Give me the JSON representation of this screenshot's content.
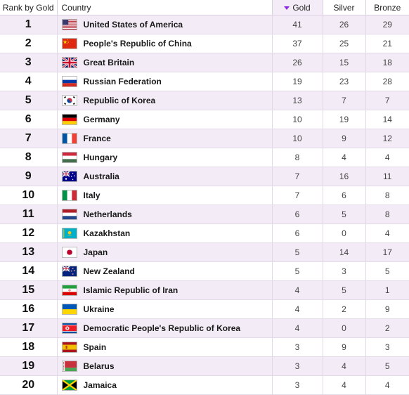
{
  "header": {
    "rank": "Rank by Gold",
    "country": "Country",
    "gold": "Gold",
    "silver": "Silver",
    "bronze": "Bronze",
    "sort_icon": "sort-descending-icon",
    "sort_color": "#8a2be2"
  },
  "rows": [
    {
      "rank": "1",
      "country": "United States of America",
      "flag": "usa",
      "gold": "41",
      "silver": "26",
      "bronze": "29"
    },
    {
      "rank": "2",
      "country": "People's Republic of China",
      "flag": "china",
      "gold": "37",
      "silver": "25",
      "bronze": "21"
    },
    {
      "rank": "3",
      "country": "Great Britain",
      "flag": "uk",
      "gold": "26",
      "silver": "15",
      "bronze": "18"
    },
    {
      "rank": "4",
      "country": "Russian Federation",
      "flag": "russia",
      "gold": "19",
      "silver": "23",
      "bronze": "28"
    },
    {
      "rank": "5",
      "country": "Republic of Korea",
      "flag": "korea",
      "gold": "13",
      "silver": "7",
      "bronze": "7"
    },
    {
      "rank": "6",
      "country": "Germany",
      "flag": "germany",
      "gold": "10",
      "silver": "19",
      "bronze": "14"
    },
    {
      "rank": "7",
      "country": "France",
      "flag": "france",
      "gold": "10",
      "silver": "9",
      "bronze": "12"
    },
    {
      "rank": "8",
      "country": "Hungary",
      "flag": "hungary",
      "gold": "8",
      "silver": "4",
      "bronze": "4"
    },
    {
      "rank": "9",
      "country": "Australia",
      "flag": "australia",
      "gold": "7",
      "silver": "16",
      "bronze": "11"
    },
    {
      "rank": "10",
      "country": "Italy",
      "flag": "italy",
      "gold": "7",
      "silver": "6",
      "bronze": "8"
    },
    {
      "rank": "11",
      "country": "Netherlands",
      "flag": "netherlands",
      "gold": "6",
      "silver": "5",
      "bronze": "8"
    },
    {
      "rank": "12",
      "country": "Kazakhstan",
      "flag": "kazakhstan",
      "gold": "6",
      "silver": "0",
      "bronze": "4"
    },
    {
      "rank": "13",
      "country": "Japan",
      "flag": "japan",
      "gold": "5",
      "silver": "14",
      "bronze": "17"
    },
    {
      "rank": "14",
      "country": "New Zealand",
      "flag": "newzealand",
      "gold": "5",
      "silver": "3",
      "bronze": "5"
    },
    {
      "rank": "15",
      "country": "Islamic Republic of Iran",
      "flag": "iran",
      "gold": "4",
      "silver": "5",
      "bronze": "1"
    },
    {
      "rank": "16",
      "country": "Ukraine",
      "flag": "ukraine",
      "gold": "4",
      "silver": "2",
      "bronze": "9"
    },
    {
      "rank": "17",
      "country": "Democratic People's Republic of Korea",
      "flag": "northkorea",
      "gold": "4",
      "silver": "0",
      "bronze": "2"
    },
    {
      "rank": "18",
      "country": "Spain",
      "flag": "spain",
      "gold": "3",
      "silver": "9",
      "bronze": "3"
    },
    {
      "rank": "19",
      "country": "Belarus",
      "flag": "belarus",
      "gold": "3",
      "silver": "4",
      "bronze": "5"
    },
    {
      "rank": "20",
      "country": "Jamaica",
      "flag": "jamaica",
      "gold": "3",
      "silver": "4",
      "bronze": "4"
    }
  ]
}
